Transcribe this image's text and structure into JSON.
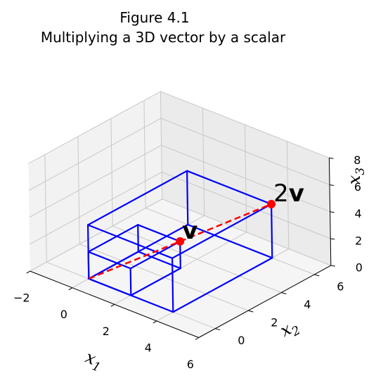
{
  "title": {
    "line1": "Figure 4.1",
    "line2": "Multiplying a 3D vector by a scalar"
  },
  "colors": {
    "box": "#0000ff",
    "vector": "#ff0000",
    "pane_back": "#ebebeb",
    "pane_side": "#f2f2f2",
    "pane_floor": "#f5f5f5",
    "grid": "#c8c8c8",
    "axis_line": "#000000"
  },
  "chart_data": {
    "type": "3d-line",
    "title": "Figure 4.1\nMultiplying a 3D vector by a scalar",
    "xlabel": "x",
    "xlabel_sub": "1",
    "ylabel": "x",
    "ylabel_sub": "2",
    "zlabel": "x",
    "zlabel_sub": "3",
    "xlim": [
      -2,
      6
    ],
    "ylim": [
      -1,
      7
    ],
    "zlim": [
      0,
      8
    ],
    "xticks": [
      -2,
      0,
      2,
      4,
      6
    ],
    "xtick_labels": [
      "−2",
      "0",
      "2",
      "4",
      "6"
    ],
    "yticks": [
      0,
      2,
      4,
      6
    ],
    "ytick_labels": [
      "0",
      "2",
      "4",
      "6"
    ],
    "zticks": [
      0,
      2,
      4,
      6,
      8
    ],
    "ztick_labels": [
      "0",
      "2",
      "4",
      "6",
      "8"
    ],
    "grid": true,
    "vectors": [
      {
        "name": "v",
        "label": "v",
        "point": [
          2,
          3,
          2
        ],
        "box_color": "blue"
      },
      {
        "name": "2v",
        "label": "2v",
        "point": [
          4,
          6,
          4
        ],
        "box_color": "blue"
      }
    ],
    "dashed_line": {
      "from": [
        0,
        0,
        0
      ],
      "to": [
        4,
        6,
        4
      ],
      "style": "dashed",
      "color": "red"
    }
  }
}
